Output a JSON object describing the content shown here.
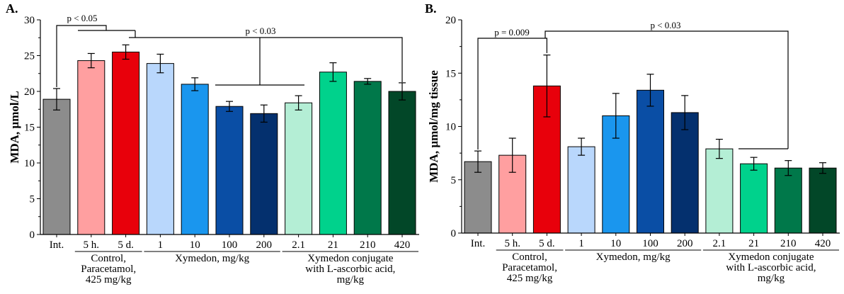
{
  "chart_data": [
    {
      "type": "bar",
      "panel_label": "A.",
      "ylabel": "MDA, µmol/L",
      "ylim": [
        0,
        30
      ],
      "yticks": [
        0,
        5,
        10,
        15,
        20,
        25,
        30
      ],
      "categories": [
        "Int.",
        "5 h.",
        "5 d.",
        "1",
        "10",
        "100",
        "200",
        "2.1",
        "21",
        "210",
        "420"
      ],
      "values": [
        18.9,
        24.3,
        25.5,
        23.9,
        21.0,
        17.9,
        16.9,
        18.4,
        22.7,
        21.4,
        20.0
      ],
      "errors": [
        1.5,
        1.0,
        1.0,
        1.3,
        0.9,
        0.7,
        1.2,
        1.0,
        1.3,
        0.4,
        1.2
      ],
      "colors": [
        "#8c8c8c",
        "#ff9fa0",
        "#e8000b",
        "#b9d7fc",
        "#1a96ee",
        "#0a4ea5",
        "#04306e",
        "#b4eed5",
        "#00d28c",
        "#00784a",
        "#024728"
      ],
      "groups": [
        {
          "label_lines": [
            "Control,",
            "Paracetamol,",
            "425 mg/kg"
          ],
          "start": 1,
          "end": 2
        },
        {
          "label_lines": [
            "Xymedon, mg/kg"
          ],
          "start": 3,
          "end": 6
        },
        {
          "label_lines": [
            "Xymedon conjugate",
            "with L-ascorbic acid,",
            "mg/kg"
          ],
          "start": 7,
          "end": 10
        }
      ],
      "annotations": [
        "p < 0.05",
        "p < 0.03"
      ]
    },
    {
      "type": "bar",
      "panel_label": "B.",
      "ylabel": "MDA, µmol/mg tissue",
      "ylim": [
        0,
        20
      ],
      "yticks": [
        0,
        5,
        10,
        15,
        20
      ],
      "categories": [
        "Int.",
        "5 h.",
        "5 d.",
        "1",
        "10",
        "100",
        "200",
        "2.1",
        "21",
        "210",
        "420"
      ],
      "values": [
        6.7,
        7.3,
        13.8,
        8.1,
        11.0,
        13.4,
        11.3,
        7.9,
        6.5,
        6.1,
        6.1
      ],
      "errors": [
        1.0,
        1.6,
        2.9,
        0.8,
        2.1,
        1.5,
        1.6,
        0.9,
        0.6,
        0.7,
        0.5
      ],
      "colors": [
        "#8c8c8c",
        "#ff9fa0",
        "#e8000b",
        "#b9d7fc",
        "#1a96ee",
        "#0a4ea5",
        "#04306e",
        "#b4eed5",
        "#00d28c",
        "#00784a",
        "#024728"
      ],
      "groups": [
        {
          "label_lines": [
            "Control,",
            "Paracetamol,",
            "425 mg/kg"
          ],
          "start": 1,
          "end": 2
        },
        {
          "label_lines": [
            "Xymedon, mg/kg"
          ],
          "start": 3,
          "end": 6
        },
        {
          "label_lines": [
            "Xymedon conjugate",
            "with L-ascorbic acid,",
            "mg/kg"
          ],
          "start": 7,
          "end": 10
        }
      ],
      "annotations": [
        "p = 0.009",
        "p < 0.03"
      ]
    }
  ]
}
